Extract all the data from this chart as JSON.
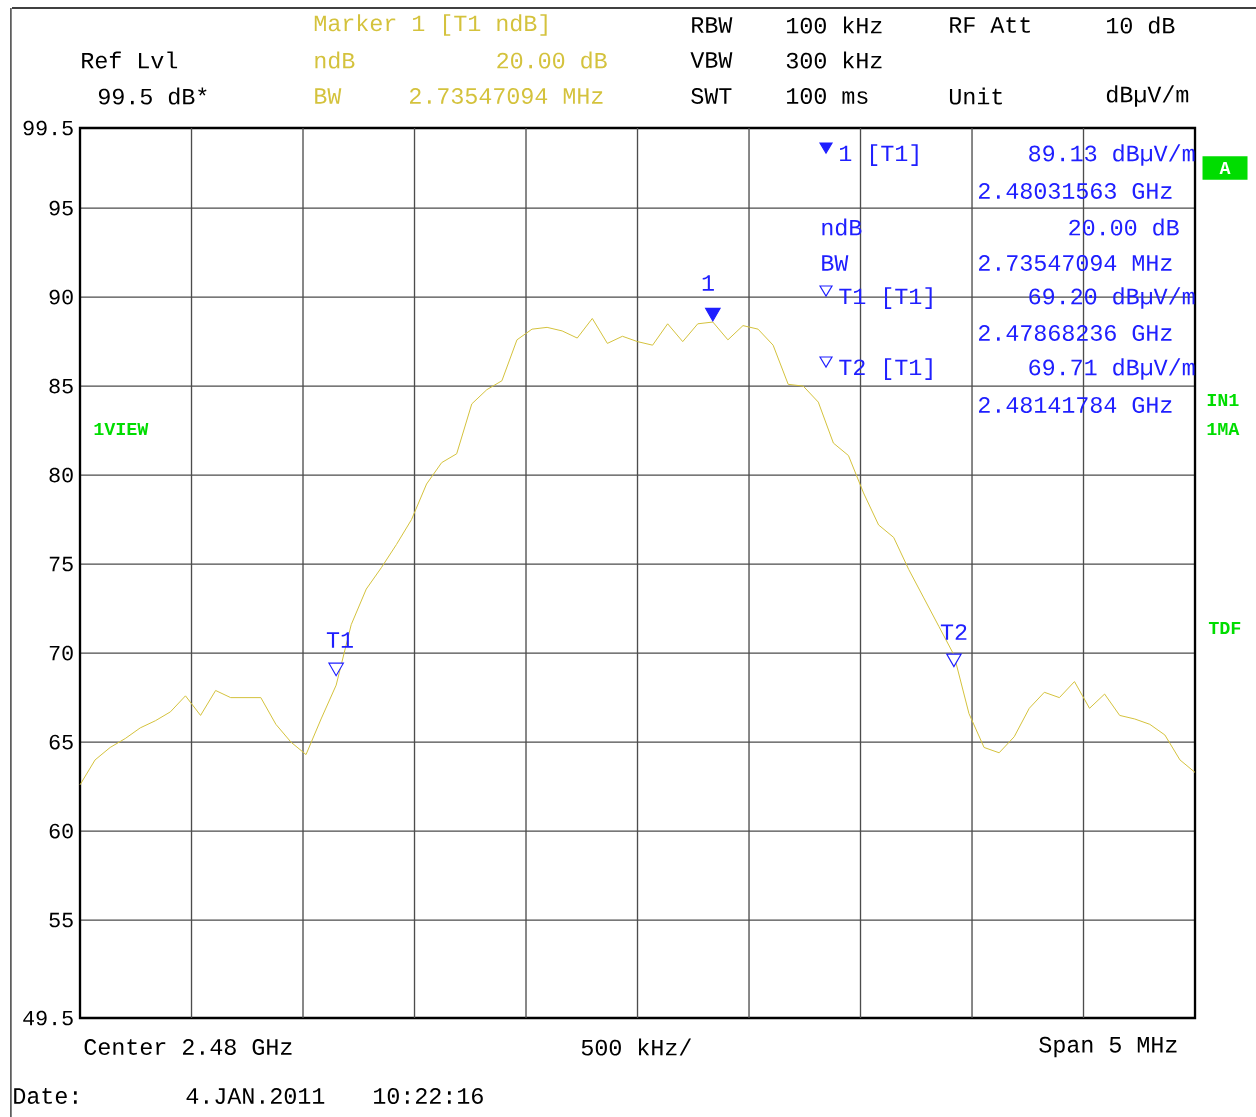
{
  "chart_data": {
    "type": "line",
    "categories": [
      null,
      null,
      null,
      null,
      null,
      null,
      null,
      null,
      null,
      null,
      null,
      null,
      null,
      null,
      null,
      null,
      null,
      null,
      null,
      null,
      null,
      null,
      null,
      null,
      null,
      null,
      null,
      null,
      null,
      null,
      null,
      null,
      null,
      null,
      null,
      null,
      null,
      null,
      null,
      null,
      null,
      null,
      null,
      null,
      null,
      null,
      null,
      null,
      null,
      null,
      null,
      null,
      null,
      null,
      null,
      null,
      null,
      null,
      null,
      null,
      null,
      null,
      null,
      null,
      null,
      null,
      null,
      null,
      null,
      null,
      null,
      null,
      null,
      null,
      null
    ],
    "series": [
      {
        "color": "#d4c23c",
        "values": [
          62.6,
          64.0,
          64.7,
          65.2,
          65.8,
          66.2,
          66.7,
          67.6,
          66.5,
          67.9,
          67.5,
          67.5,
          67.5,
          66.0,
          65.0,
          64.3,
          66.3,
          68.2,
          71.6,
          73.6,
          74.8,
          76.1,
          77.5,
          79.5,
          80.7,
          81.2,
          84.0,
          84.8,
          85.3,
          87.6,
          88.2,
          88.3,
          88.1,
          87.7,
          88.8,
          87.4,
          87.8,
          87.5,
          87.3,
          88.5,
          87.5,
          88.5,
          88.6,
          87.6,
          88.4,
          88.2,
          87.3,
          85.1,
          85.0,
          84.1,
          81.8,
          81.1,
          79.0,
          77.2,
          76.5,
          74.7,
          73.1,
          71.5,
          69.9,
          66.6,
          64.7,
          64.4,
          65.3,
          66.9,
          67.8,
          67.5,
          68.4,
          66.9,
          67.7,
          66.5,
          66.3,
          66.0,
          65.4,
          64.0,
          63.3
        ]
      },
      {
        "type": "scatter",
        "marker": "triangle",
        "color": "#1f1fff",
        "values": [
          null,
          null,
          null,
          null,
          null,
          null,
          null,
          null,
          null,
          null,
          null,
          null,
          null,
          null,
          null,
          null,
          null,
          69.2,
          null,
          null,
          null,
          null,
          null,
          null,
          null,
          null,
          null,
          null,
          null,
          null,
          null,
          null,
          null,
          null,
          null,
          null,
          null,
          null,
          null,
          null,
          null,
          null,
          89.13,
          null,
          null,
          null,
          null,
          null,
          null,
          null,
          null,
          null,
          null,
          null,
          null,
          null,
          null,
          null,
          69.71,
          null,
          null,
          null,
          null,
          null,
          null,
          null,
          null,
          null,
          null,
          null,
          null,
          null,
          null,
          null,
          null
        ],
        "colors": [
          null,
          null,
          null,
          null,
          null,
          null,
          null,
          null,
          null,
          null,
          null,
          null,
          null,
          null,
          null,
          null,
          null,
          "#ffffff",
          null,
          null,
          null,
          null,
          null,
          null,
          null,
          null,
          null,
          null,
          null,
          null,
          null,
          null,
          null,
          null,
          null,
          null,
          null,
          null,
          null,
          null,
          null,
          null,
          "#1f1fff",
          null,
          null,
          null,
          null,
          null,
          null,
          null,
          null,
          null,
          null,
          null,
          null,
          null,
          null,
          null,
          "#ffffff",
          null,
          null,
          null,
          null,
          null,
          null,
          null,
          null,
          null,
          null,
          null,
          null,
          null,
          null,
          null,
          null
        ]
      }
    ],
    "ylim": [
      49.5,
      99.5
    ],
    "yticks": [
      49.5,
      55,
      60,
      65,
      70,
      75,
      80,
      85,
      90,
      95,
      99.5
    ],
    "tick_labels": "y",
    "grid": true,
    "annotations": [
      "Marker 1 [T1 ndB]",
      "ndB",
      "20.00 dB",
      "BW",
      "2.73547094 MHz",
      "Ref Lvl",
      "99.5 dB*",
      "RBW",
      "100 kHz",
      "RF Att",
      "10 dB",
      "VBW",
      "300 kHz",
      "SWT",
      "100 ms",
      "Unit",
      "dBµV/m",
      "1 [T1]",
      "89.13 dBµV/m",
      "2.48031563 GHz",
      "ndB",
      "20.00 dB",
      "BW",
      "2.73547094 MHz",
      "T1 [T1]",
      "69.20 dBµV/m",
      "2.47868236 GHz",
      "T2 [T1]",
      "69.71 dBµV/m",
      "2.48141784 GHz",
      "1VIEW",
      "A",
      "IN1",
      "1MA",
      "TDF",
      "Center 2.48 GHz",
      "500 kHz/",
      "Span 5 MHz",
      "Date:",
      "4.JAN.2011",
      "10:22:16",
      "1",
      "T1",
      "T2"
    ]
  }
}
